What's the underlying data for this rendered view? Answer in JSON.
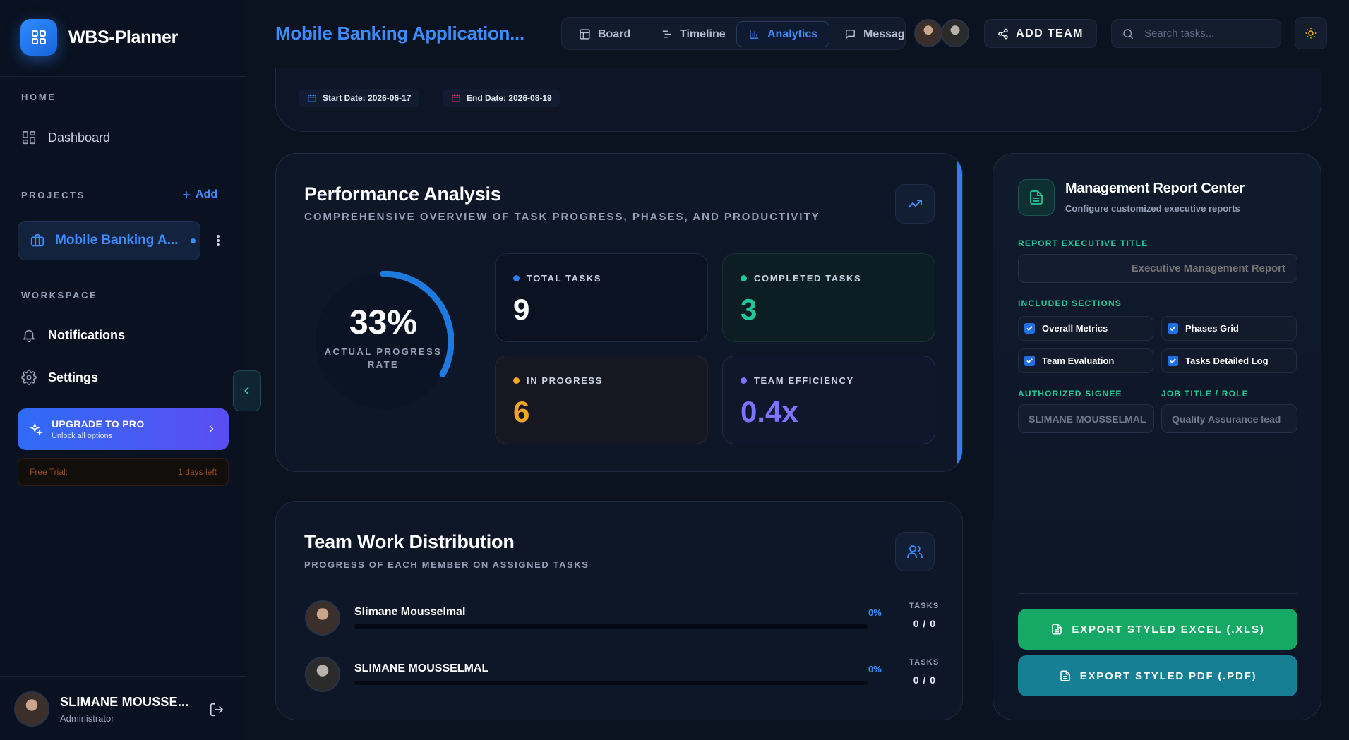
{
  "brand": {
    "name": "WBS-Planner"
  },
  "sidebar": {
    "home_label": "HOME",
    "dashboard_label": "Dashboard",
    "projects_label": "PROJECTS",
    "add_label": "Add",
    "project_item": "Mobile Banking A...",
    "workspace_label": "WORKSPACE",
    "notifications_label": "Notifications",
    "settings_label": "Settings",
    "upgrade": {
      "title": "UPGRADE TO PRO",
      "subtitle": "Unlock all options"
    },
    "trial": {
      "label": "Free Trial:",
      "value": "1 days left"
    },
    "user": {
      "name": "SLIMANE MOUSSE...",
      "role": "Administrator"
    }
  },
  "topbar": {
    "project_title": "Mobile Banking Application...",
    "tabs": [
      {
        "label": "Board",
        "icon": "board-icon"
      },
      {
        "label": "Timeline",
        "icon": "timeline-icon"
      },
      {
        "label": "Analytics",
        "icon": "analytics-icon",
        "active": true
      },
      {
        "label": "Messag",
        "icon": "message-icon"
      }
    ],
    "add_team_label": "ADD TEAM",
    "search_placeholder": "Search tasks..."
  },
  "dates": {
    "start": "Start Date: 2026-06-17",
    "end": "End Date: 2026-08-19"
  },
  "performance": {
    "title": "Performance Analysis",
    "subtitle": "COMPREHENSIVE OVERVIEW OF TASK PROGRESS, PHASES, AND PRODUCTIVITY",
    "progress_percent": 33,
    "progress_text": "33%",
    "progress_label": "ACTUAL PROGRESS RATE",
    "stats": [
      {
        "label": "TOTAL TASKS",
        "value": "9",
        "color": "#2f7cf5"
      },
      {
        "label": "COMPLETED TASKS",
        "value": "3",
        "color": "#20c997"
      },
      {
        "label": "IN PROGRESS",
        "value": "6",
        "color": "#f5a524"
      },
      {
        "label": "TEAM EFFICIENCY",
        "value": "0.4x",
        "color": "#7c74ff"
      }
    ]
  },
  "team": {
    "title": "Team Work Distribution",
    "subtitle": "PROGRESS OF EACH MEMBER ON ASSIGNED TASKS",
    "tasks_label": "TASKS",
    "members": [
      {
        "name": "Slimane Mousselmal",
        "percent": 0,
        "percent_text": "0%",
        "tasks": "0 / 0"
      },
      {
        "name": "SLIMANE MOUSSELMAL",
        "percent": 0,
        "percent_text": "0%",
        "tasks": "0 / 0"
      }
    ]
  },
  "report": {
    "title": "Management Report Center",
    "subtitle": "Configure customized executive reports",
    "exec_title_label": "REPORT EXECUTIVE TITLE",
    "exec_title_placeholder": "Executive Management Report",
    "sections_label": "INCLUDED SECTIONS",
    "sections": [
      {
        "label": "Overall Metrics",
        "checked": true
      },
      {
        "label": "Phases Grid",
        "checked": true
      },
      {
        "label": "Team Evaluation",
        "checked": true
      },
      {
        "label": "Tasks Detailed Log",
        "checked": true
      }
    ],
    "signee_label": "AUTHORIZED SIGNEE",
    "signee_value": "SLIMANE MOUSSELMAL",
    "job_label": "JOB TITLE / ROLE",
    "job_value": "Quality Assurance lead",
    "export_excel": "EXPORT STYLED EXCEL (.XLS)",
    "export_pdf": "EXPORT STYLED PDF (.PDF)",
    "excel_color": "#16a965",
    "pdf_color": "#177f94"
  }
}
